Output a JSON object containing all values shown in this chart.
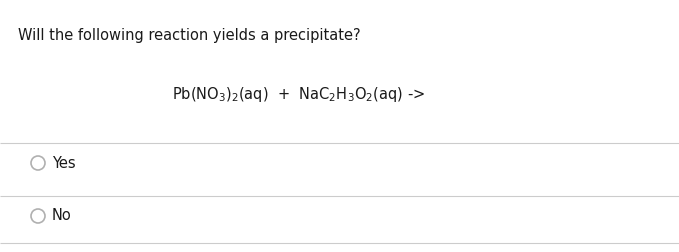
{
  "title": "Will the following reaction yields a precipitate?",
  "reaction": "Pb(NO$_3$)$_2$(aq)  +  NaC$_2$H$_3$O$_2$(aq) ->",
  "options": [
    "Yes",
    "No"
  ],
  "bg_color": "#ffffff",
  "text_color": "#1a1a1a",
  "line_color": "#cccccc",
  "title_fontsize": 10.5,
  "reaction_fontsize": 10.5,
  "option_fontsize": 10.5,
  "figwidth": 6.79,
  "figheight": 2.52,
  "dpi": 100
}
